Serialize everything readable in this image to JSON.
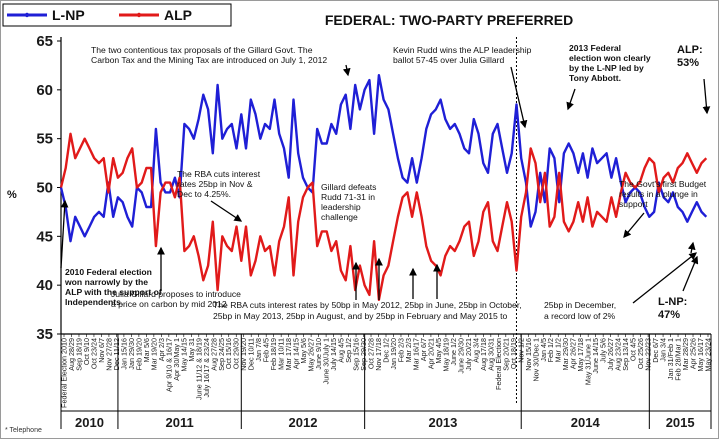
{
  "chart_data": {
    "type": "line",
    "title": "FEDERAL: TWO-PARTY PREFERRED",
    "ylabel": "%",
    "ylim": [
      35,
      65
    ],
    "yticks": [
      35,
      40,
      45,
      50,
      55,
      60,
      65
    ],
    "grid": false,
    "legend_position": "top-left",
    "footnote": "* Telephone",
    "colors": {
      "lnp": "#1f1fd6",
      "alp": "#e11a1a"
    },
    "legend": [
      {
        "name": "L-NP",
        "color": "#1f1fd6"
      },
      {
        "name": "ALP",
        "color": "#e11a1a"
      }
    ],
    "years": [
      {
        "label": "2010",
        "from": 0,
        "to": 12
      },
      {
        "label": "2011",
        "from": 12,
        "to": 38
      },
      {
        "label": "2012",
        "from": 38,
        "to": 64
      },
      {
        "label": "2013",
        "from": 64,
        "to": 97
      },
      {
        "label": "2014",
        "from": 97,
        "to": 124
      },
      {
        "label": "2015",
        "from": 124,
        "to": 137
      }
    ],
    "tick_labels": [
      "Federal Election 2010",
      "Aug 28/29",
      "Sep 18/19",
      "Oct 9/10",
      "Oct 23/24",
      "Nov 6/7",
      "Nov 27/28",
      "Dec 11/12",
      "Jan 15/16",
      "Jan 29/30",
      "Feb 19/20",
      "Mar 5/6",
      "Mar 19/20",
      "Apr 2/3",
      "Apr 9/10 & 16/17",
      "Apr 30/May 1",
      "May 14/15",
      "May 31",
      "June 11/12 & 18/19",
      "July 16/17 & 23/24",
      "Aug 27/28",
      "Sep 24/25",
      "Oct 15/16",
      "Oct 29/30",
      "Nov 19/20",
      "Dec 10/11",
      "Jan 7/8",
      "Feb 4/5",
      "Feb 18/19",
      "Mar 10/11",
      "Mar 17/18",
      "Apr 14/15",
      "May 5/6",
      "May 26/27",
      "June 9/10",
      "June 30/July 1",
      "July 14/15",
      "Aug 4/5",
      "Sep 1/2",
      "Sep 15/16",
      "Sep 29/30",
      "Oct 27/28",
      "Nov 17/18",
      "Dec 1/2",
      "Jan 19/20",
      "Feb 2/3",
      "Mar 2/3",
      "Mar 16/17",
      "Apr 6/7",
      "Apr 20/21",
      "May 4/5",
      "May 18/19",
      "June 1/2",
      "June 29/30",
      "July 20/21",
      "Aug 3/4",
      "Aug 17/18",
      "Aug 30/31",
      "Federal Election",
      "Sep 20/21",
      "Oct 18/19",
      "Nov 1/2",
      "Nov 15/16",
      "Nov 30/Dec 1",
      "Jan 4/5",
      "Feb 1/2",
      "Mar 1/2",
      "Mar 29/30",
      "Apr 26/27",
      "May 17/18",
      "May 31/June 1",
      "June 14/15",
      "July 5/6",
      "July 26/27",
      "Aug 23/24",
      "Sep 13/14",
      "Oct 4/5",
      "Oct 25/26",
      "Nov 22/23",
      "Dec 6/7",
      "Jan 3/4",
      "Jan 31/Feb 1",
      "Feb 28/Mar 1",
      "Mar 28/29",
      "Apr 25/26",
      "May 16/17",
      "May 23/24"
    ],
    "series": [
      {
        "name": "L-NP",
        "color": "#1f1fd6",
        "values": [
          50,
          48,
          44.5,
          47,
          46,
          45,
          46,
          47,
          47.5,
          47,
          50.5,
          47,
          49,
          48.5,
          47,
          46,
          50,
          49.5,
          48,
          48,
          56,
          50.5,
          49.5,
          49.5,
          51,
          49,
          56.5,
          56,
          55,
          57,
          59.5,
          58,
          53.5,
          60.5,
          55,
          56,
          56.5,
          54,
          57.5,
          54,
          59,
          57.5,
          55,
          56.5,
          56,
          59,
          55.5,
          54,
          51,
          59,
          53.5,
          51,
          50,
          49.5,
          56,
          54.5,
          54.5,
          56.5,
          55.5,
          58.5,
          59.5,
          56,
          60.5,
          58,
          60,
          61,
          55.5,
          61.5,
          59,
          58,
          55.5,
          53,
          51,
          50.5,
          53,
          50.5,
          53,
          56,
          57.5,
          58,
          59,
          57,
          56,
          56.5,
          55.5,
          54,
          53.5,
          57,
          55.5,
          52.5,
          51.5,
          55.5,
          56.5,
          54,
          51.5,
          53.5,
          58.5,
          53,
          50.5,
          46,
          47.5,
          51.5,
          48.5,
          54,
          53,
          48.5,
          53.5,
          54.5,
          53.5,
          51.5,
          53.5,
          51,
          54,
          52.5,
          53,
          53.5,
          51,
          53,
          50.5,
          48.5,
          49.5,
          50,
          49.5,
          48,
          47,
          47.5,
          50.5,
          49,
          48.5,
          49.5,
          48,
          47.5,
          46.5,
          47.5,
          48.5,
          47.5,
          47
        ]
      },
      {
        "name": "ALP",
        "color": "#e11a1a",
        "values": [
          50,
          52,
          55.5,
          53,
          54,
          55,
          54,
          53,
          52.5,
          53,
          49.5,
          53,
          51,
          51.5,
          53,
          54,
          50,
          50.5,
          52,
          52,
          44,
          49.5,
          50.5,
          50.5,
          49,
          51,
          43.5,
          44,
          45,
          43,
          40.5,
          42,
          46.5,
          39.5,
          45,
          44,
          43.5,
          46,
          42.5,
          46,
          41,
          42.5,
          45,
          43.5,
          44,
          41,
          44.5,
          46,
          49,
          41,
          46.5,
          49,
          50,
          50.5,
          44,
          45.5,
          45.5,
          43.5,
          44.5,
          41.5,
          40.5,
          44,
          39.5,
          42,
          40,
          39,
          44.5,
          38.5,
          41,
          42,
          44.5,
          47,
          49,
          49.5,
          47,
          49.5,
          47,
          44,
          42.5,
          42,
          41,
          43,
          44,
          43.5,
          44.5,
          46,
          46.5,
          43,
          44.5,
          47.5,
          48.5,
          44.5,
          43.5,
          46,
          48.5,
          46.5,
          41.5,
          47,
          49.5,
          54,
          52.5,
          48.5,
          51.5,
          46,
          47,
          51.5,
          46.5,
          45.5,
          46.5,
          48.5,
          46.5,
          49,
          46,
          47.5,
          47,
          46.5,
          49,
          47,
          49.5,
          51.5,
          50.5,
          50,
          50.5,
          52,
          53,
          52.5,
          49.5,
          51,
          51.5,
          50.5,
          52,
          52.5,
          53.5,
          52.5,
          51.5,
          52.5,
          53
        ]
      }
    ],
    "annotations": [
      {
        "id": "tax-proposals",
        "lines": [
          "The two contentious tax proposals of the Gillard Govt. The",
          "Carbon Tax and the Mining Tax are introduced on July 1, 2012"
        ]
      },
      {
        "id": "rudd-leadership",
        "lines": [
          "Kevin Rudd wins the ALP leadership",
          "ballot 57-45 over Julia Gillard"
        ]
      },
      {
        "id": "election-2013",
        "lines": [
          "2013 Federal",
          "election won clearly",
          "by the L-NP led by",
          "Tony Abbott."
        ]
      },
      {
        "id": "alp-final",
        "lines": [
          "ALP:",
          "53%"
        ]
      },
      {
        "id": "rba-cuts-2011",
        "lines": [
          "The RBA cuts interest",
          "rates 25bp in Nov &",
          "Dec to 4.25%."
        ]
      },
      {
        "id": "gillard-defeats-rudd",
        "lines": [
          "Gillard defeats",
          "Rudd 71-31 in",
          "leadership",
          "challenge"
        ]
      },
      {
        "id": "first-budget",
        "lines": [
          "The Govt's first Budget",
          "results in a plunge in",
          "support"
        ]
      },
      {
        "id": "election-2010",
        "lines": [
          "2010 Federal election",
          "won narrowly by the",
          "ALP with the support of",
          "Independents."
        ]
      },
      {
        "id": "carbon-price",
        "lines": [
          "Julia Gillard proposes to introduce",
          "a price on carbon by mid 2012"
        ]
      },
      {
        "id": "rba-2012-2013",
        "lines": [
          "The RBA cuts interest rates by 50bp in May 2012, 25bp in June, 25bp in October,",
          "25bp   in  May  2013,  25bp in August, and by 25bp  in   February and May 2015 to"
        ]
      },
      {
        "id": "rba-dec",
        "lines": [
          "25bp in December,",
          "a record low of 2%"
        ]
      },
      {
        "id": "lnp-final",
        "lines": [
          "L-NP:",
          "47%"
        ]
      }
    ]
  }
}
